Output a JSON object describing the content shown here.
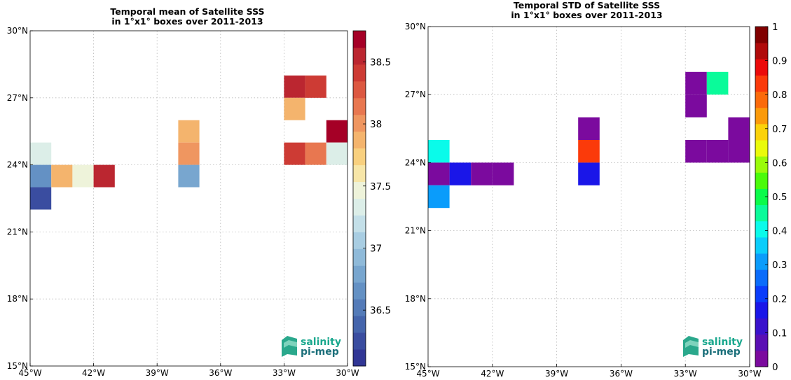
{
  "chart_data": [
    {
      "type": "heatmap",
      "title_line1": "Temporal mean of Satellite SSS",
      "title_line2": "in 1°x1° boxes over 2011-2013",
      "xlim": [
        -45,
        -30
      ],
      "ylim": [
        15,
        30
      ],
      "x_ticks": [
        -45,
        -42,
        -39,
        -36,
        -33,
        -30
      ],
      "x_tick_labels": [
        "45°W",
        "42°W",
        "39°W",
        "36°W",
        "33°W",
        "30°W"
      ],
      "y_ticks": [
        15,
        18,
        21,
        24,
        27,
        30
      ],
      "y_tick_labels": [
        "15°N",
        "18°N",
        "21°N",
        "24°N",
        "27°N",
        "30°N"
      ],
      "grid": true,
      "colorbar": {
        "vmin": 36.05,
        "vmax": 38.75,
        "ticks": [
          36.5,
          37,
          37.5,
          38,
          38.5
        ],
        "tick_labels": [
          "36.5",
          "37",
          "37.5",
          "38",
          "38.5"
        ],
        "colors": [
          "#313695",
          "#3a4da0",
          "#4565ac",
          "#547bb8",
          "#6491c4",
          "#78a6cf",
          "#8fbad9",
          "#a8cde2",
          "#c3dfe8",
          "#dceee8",
          "#eef3da",
          "#f7e6a8",
          "#f8d07f",
          "#f4b46d",
          "#ef9660",
          "#e87750",
          "#dc5841",
          "#cd3b34",
          "#bb2630",
          "#a50026"
        ]
      },
      "cells": [
        {
          "lon": -45,
          "lat": 24,
          "value": 37.33
        },
        {
          "lon": -45,
          "lat": 23,
          "value": 36.72
        },
        {
          "lon": -44,
          "lat": 23,
          "value": 37.9
        },
        {
          "lon": -43,
          "lat": 23,
          "value": 37.45
        },
        {
          "lon": -42,
          "lat": 23,
          "value": 38.55
        },
        {
          "lon": -45,
          "lat": 22,
          "value": 36.25
        },
        {
          "lon": -38,
          "lat": 25,
          "value": 37.92
        },
        {
          "lon": -38,
          "lat": 24,
          "value": 38.07
        },
        {
          "lon": -38,
          "lat": 23,
          "value": 36.85
        },
        {
          "lon": -33,
          "lat": 27,
          "value": 38.55
        },
        {
          "lon": -32,
          "lat": 27,
          "value": 38.4
        },
        {
          "lon": -33,
          "lat": 26,
          "value": 37.92
        },
        {
          "lon": -31,
          "lat": 25,
          "value": 38.7
        },
        {
          "lon": -33,
          "lat": 24,
          "value": 38.4
        },
        {
          "lon": -32,
          "lat": 24,
          "value": 38.1
        },
        {
          "lon": -31,
          "lat": 24,
          "value": 37.33
        }
      ],
      "logo": [
        "salinity",
        "pi-mep"
      ]
    },
    {
      "type": "heatmap",
      "title_line1": "Temporal STD of Satellite SSS",
      "title_line2": "in 1°x1° boxes over 2011-2013",
      "xlim": [
        -45,
        -30
      ],
      "ylim": [
        15,
        30
      ],
      "x_ticks": [
        -45,
        -42,
        -39,
        -36,
        -33,
        -30
      ],
      "x_tick_labels": [
        "45°W",
        "42°W",
        "39°W",
        "36°W",
        "33°W",
        "30°W"
      ],
      "y_ticks": [
        15,
        18,
        21,
        24,
        27,
        30
      ],
      "y_tick_labels": [
        "15°N",
        "18°N",
        "21°N",
        "24°N",
        "27°N",
        "30°N"
      ],
      "grid": true,
      "colorbar": {
        "vmin": 0,
        "vmax": 1,
        "ticks": [
          0,
          0.1,
          0.2,
          0.3,
          0.4,
          0.5,
          0.6,
          0.7,
          0.8,
          0.9,
          1
        ],
        "tick_labels": [
          "0",
          "0.1",
          "0.2",
          "0.3",
          "0.4",
          "0.5",
          "0.6",
          "0.7",
          "0.8",
          "0.9",
          "1"
        ],
        "colors": [
          "#7b0a9e",
          "#5a0fb4",
          "#3a12cc",
          "#1a16e8",
          "#0a3cfb",
          "#0a6cfb",
          "#0a9cfb",
          "#0acdfb",
          "#0afbea",
          "#0afb9a",
          "#0afb4a",
          "#4afb0a",
          "#9afb0a",
          "#eafb0a",
          "#fbd20a",
          "#fb9a0a",
          "#fb6a0a",
          "#fb3a0a",
          "#eb0a0a",
          "#b00a0a",
          "#800000"
        ]
      },
      "cells": [
        {
          "lon": -45,
          "lat": 24,
          "value": 0.42
        },
        {
          "lon": -45,
          "lat": 23,
          "value": 0.03
        },
        {
          "lon": -44,
          "lat": 23,
          "value": 0.18
        },
        {
          "lon": -43,
          "lat": 23,
          "value": 0.03
        },
        {
          "lon": -42,
          "lat": 23,
          "value": 0.03
        },
        {
          "lon": -45,
          "lat": 22,
          "value": 0.32
        },
        {
          "lon": -38,
          "lat": 25,
          "value": 0.03
        },
        {
          "lon": -38,
          "lat": 24,
          "value": 0.82
        },
        {
          "lon": -38,
          "lat": 23,
          "value": 0.18
        },
        {
          "lon": -33,
          "lat": 27,
          "value": 0.03
        },
        {
          "lon": -32,
          "lat": 27,
          "value": 0.47
        },
        {
          "lon": -33,
          "lat": 26,
          "value": 0.03
        },
        {
          "lon": -31,
          "lat": 25,
          "value": 0.03
        },
        {
          "lon": -33,
          "lat": 24,
          "value": 0.03
        },
        {
          "lon": -32,
          "lat": 24,
          "value": 0.03
        },
        {
          "lon": -31,
          "lat": 24,
          "value": 0.03
        }
      ],
      "logo": [
        "salinity",
        "pi-mep"
      ]
    }
  ]
}
